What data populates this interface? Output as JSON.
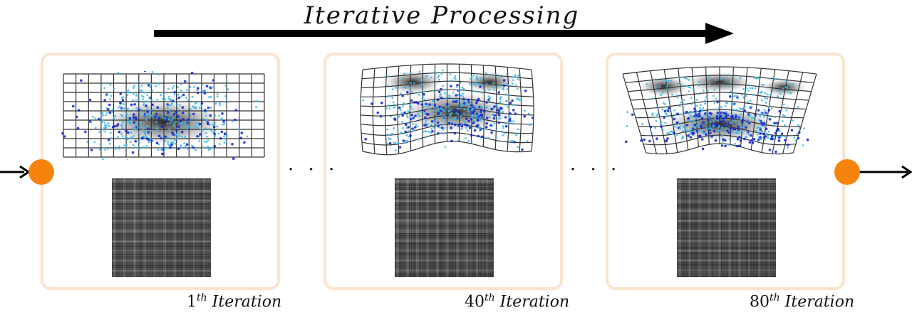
{
  "header": {
    "title": "Iterative Processing"
  },
  "panels": [
    {
      "iteration_number": "1",
      "iteration_suffix": "th",
      "iteration_word": "Iteration"
    },
    {
      "iteration_number": "40",
      "iteration_suffix": "th",
      "iteration_word": "Iteration"
    },
    {
      "iteration_number": "80",
      "iteration_suffix": "th",
      "iteration_word": "Iteration"
    }
  ],
  "separator": "· · ·",
  "colors": {
    "panel_border": "#fbe3cc",
    "node": "#f7830f",
    "point_light": "#33b5e5",
    "point_dark": "#1420c8",
    "grid": "#333333"
  }
}
